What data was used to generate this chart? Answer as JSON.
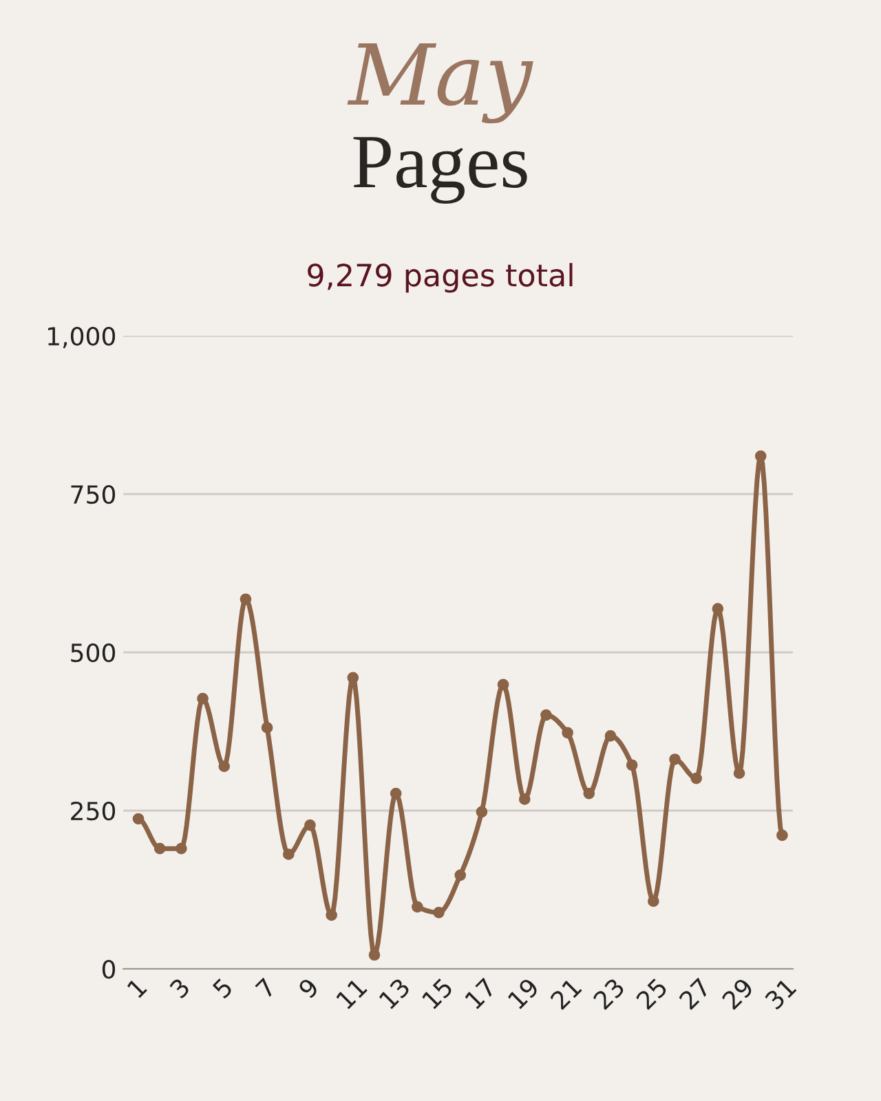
{
  "chart_data": {
    "type": "line",
    "title": "May",
    "subtitle": "Pages",
    "annotations": [
      "9,279 pages total"
    ],
    "x": [
      1,
      2,
      3,
      4,
      5,
      6,
      7,
      8,
      9,
      10,
      11,
      12,
      13,
      14,
      15,
      16,
      17,
      18,
      19,
      20,
      21,
      22,
      23,
      24,
      25,
      26,
      27,
      28,
      29,
      30,
      31
    ],
    "series": [
      {
        "color": "#8b6347",
        "values": [
          237,
          190,
          190,
          427,
          320,
          584,
          381,
          181,
          227,
          85,
          460,
          22,
          277,
          98,
          89,
          148,
          248,
          449,
          268,
          401,
          373,
          277,
          368,
          322,
          107,
          331,
          301,
          569,
          309,
          810,
          211
        ]
      }
    ],
    "xlim": [
      0.3,
      31.5
    ],
    "xticks": [
      1,
      3,
      5,
      7,
      9,
      11,
      13,
      15,
      17,
      19,
      21,
      23,
      25,
      27,
      29,
      31
    ],
    "ylim": [
      0,
      1000
    ],
    "yticks": [
      0,
      {
        "value": 250,
        "label": "250"
      },
      {
        "value": 500,
        "label": "500"
      },
      {
        "value": 750,
        "label": "750"
      },
      {
        "value": 1000,
        "label": "1,000"
      }
    ],
    "grid": "y",
    "marker": "circle",
    "line_style": "solid"
  }
}
